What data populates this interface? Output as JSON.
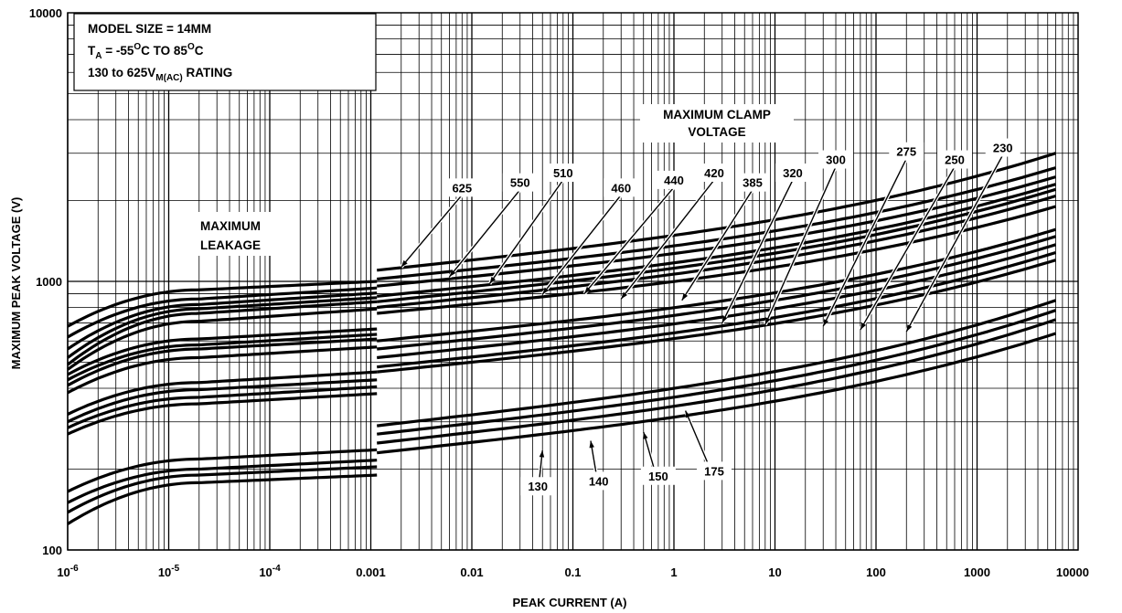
{
  "chart_data": {
    "type": "line",
    "xlabel": "PEAK CURRENT (A)",
    "ylabel": "MAXIMUM PEAK VOLTAGE (V)",
    "x_scale": "log",
    "y_scale": "log",
    "xlim": [
      1e-06,
      10000
    ],
    "ylim": [
      100,
      10000
    ],
    "grid": true,
    "xtick_labels": [
      {
        "base": "10",
        "exp": "-6"
      },
      {
        "base": "10",
        "exp": "-5"
      },
      {
        "base": "10",
        "exp": "-4"
      },
      {
        "base": "0.001",
        "exp": ""
      },
      {
        "base": "0.01",
        "exp": ""
      },
      {
        "base": "0.1",
        "exp": ""
      },
      {
        "base": "1",
        "exp": ""
      },
      {
        "base": "10",
        "exp": ""
      },
      {
        "base": "100",
        "exp": ""
      },
      {
        "base": "1000",
        "exp": ""
      },
      {
        "base": "10000",
        "exp": ""
      }
    ],
    "ytick_labels": [
      "100",
      "1000",
      "10000"
    ],
    "info_box": {
      "line1": "MODEL SIZE = 14MM",
      "line2": {
        "t": "T",
        "t_sub": "A",
        "eq": " = -55",
        "deg1": "O",
        "mid": "C TO 85",
        "deg2": "O",
        "end": "C"
      },
      "line3": {
        "pre": "130 to 625V",
        "sub": "M(AC)",
        "post": " RATING"
      }
    },
    "region_labels": {
      "leakage": [
        "MAXIMUM",
        "LEAKAGE"
      ],
      "clamp": [
        "MAXIMUM CLAMP",
        "VOLTAGE"
      ]
    },
    "leakage_series": [
      {
        "v0": 680,
        "v_knee": 930,
        "v_end": 1000
      },
      {
        "v0": 620,
        "v_knee": 860,
        "v_end": 945
      },
      {
        "v0": 560,
        "v_knee": 820,
        "v_end": 905
      },
      {
        "v0": 520,
        "v_knee": 790,
        "v_end": 870
      },
      {
        "v0": 490,
        "v_knee": 760,
        "v_end": 840
      },
      {
        "v0": 470,
        "v_knee": 710,
        "v_end": 790
      },
      {
        "v0": 450,
        "v_knee": 610,
        "v_end": 665
      },
      {
        "v0": 430,
        "v_knee": 580,
        "v_end": 635
      },
      {
        "v0": 410,
        "v_knee": 560,
        "v_end": 610
      },
      {
        "v0": 385,
        "v_knee": 520,
        "v_end": 570
      },
      {
        "v0": 320,
        "v_knee": 420,
        "v_end": 460
      },
      {
        "v0": 300,
        "v_knee": 395,
        "v_end": 430
      },
      {
        "v0": 285,
        "v_knee": 370,
        "v_end": 405
      },
      {
        "v0": 270,
        "v_knee": 350,
        "v_end": 382
      },
      {
        "v0": 165,
        "v_knee": 218,
        "v_end": 236
      },
      {
        "v0": 150,
        "v_knee": 200,
        "v_end": 216
      },
      {
        "v0": 138,
        "v_knee": 190,
        "v_end": 204
      },
      {
        "v0": 125,
        "v_knee": 178,
        "v_end": 190
      }
    ],
    "clamp_series": [
      {
        "name": "625",
        "v_start": 1100,
        "v_end": 3000
      },
      {
        "name": "550",
        "v_start": 1020,
        "v_end": 2650
      },
      {
        "name": "510",
        "v_start": 960,
        "v_end": 2450
      },
      {
        "name": "460",
        "v_start": 880,
        "v_end": 2300
      },
      {
        "name": "440",
        "v_start": 840,
        "v_end": 2200
      },
      {
        "name": "420",
        "v_start": 800,
        "v_end": 2080
      },
      {
        "name": "385",
        "v_start": 760,
        "v_end": 1900
      },
      {
        "name": "320",
        "v_start": 600,
        "v_end": 1560
      },
      {
        "name": "300",
        "v_start": 560,
        "v_end": 1470
      },
      {
        "name": "275",
        "v_start": 520,
        "v_end": 1370
      },
      {
        "name": "250",
        "v_start": 480,
        "v_end": 1280
      },
      {
        "name": "230",
        "v_start": 460,
        "v_end": 1200
      },
      {
        "name": "175",
        "v_start": 290,
        "v_end": 850
      },
      {
        "name": "150",
        "v_start": 270,
        "v_end": 780
      },
      {
        "name": "140",
        "v_start": 250,
        "v_end": 720
      },
      {
        "name": "130",
        "v_start": 230,
        "v_end": 640
      }
    ],
    "curve_labels": [
      {
        "name": "625",
        "label_i": 0.008,
        "label_v": 2200,
        "pt_i": 0.002,
        "pt_v": 1130
      },
      {
        "name": "550",
        "label_i": 0.03,
        "label_v": 2300,
        "pt_i": 0.006,
        "pt_v": 1040
      },
      {
        "name": "510",
        "label_i": 0.08,
        "label_v": 2500,
        "pt_i": 0.015,
        "pt_v": 980
      },
      {
        "name": "460",
        "label_i": 0.3,
        "label_v": 2200,
        "pt_i": 0.05,
        "pt_v": 895
      },
      {
        "name": "440",
        "label_i": 1.0,
        "label_v": 2350,
        "pt_i": 0.13,
        "pt_v": 900
      },
      {
        "name": "420",
        "label_i": 2.5,
        "label_v": 2500,
        "pt_i": 0.3,
        "pt_v": 860
      },
      {
        "name": "385",
        "label_i": 6,
        "label_v": 2300,
        "pt_i": 1.2,
        "pt_v": 850
      },
      {
        "name": "320",
        "label_i": 15,
        "label_v": 2500,
        "pt_i": 3,
        "pt_v": 700
      },
      {
        "name": "300",
        "label_i": 40,
        "label_v": 2800,
        "pt_i": 8,
        "pt_v": 690
      },
      {
        "name": "275",
        "label_i": 200,
        "label_v": 3000,
        "pt_i": 30,
        "pt_v": 680
      },
      {
        "name": "250",
        "label_i": 600,
        "label_v": 2800,
        "pt_i": 70,
        "pt_v": 660
      },
      {
        "name": "230",
        "label_i": 1800,
        "label_v": 3100,
        "pt_i": 200,
        "pt_v": 650
      },
      {
        "name": "130",
        "label_i": 0.045,
        "label_v": 170,
        "pt_i": 0.05,
        "pt_v": 235
      },
      {
        "name": "140",
        "label_i": 0.18,
        "label_v": 178,
        "pt_i": 0.15,
        "pt_v": 255
      },
      {
        "name": "150",
        "label_i": 0.7,
        "label_v": 186,
        "pt_i": 0.5,
        "pt_v": 275
      },
      {
        "name": "175",
        "label_i": 2.5,
        "label_v": 194,
        "pt_i": 1.3,
        "pt_v": 330
      }
    ]
  }
}
